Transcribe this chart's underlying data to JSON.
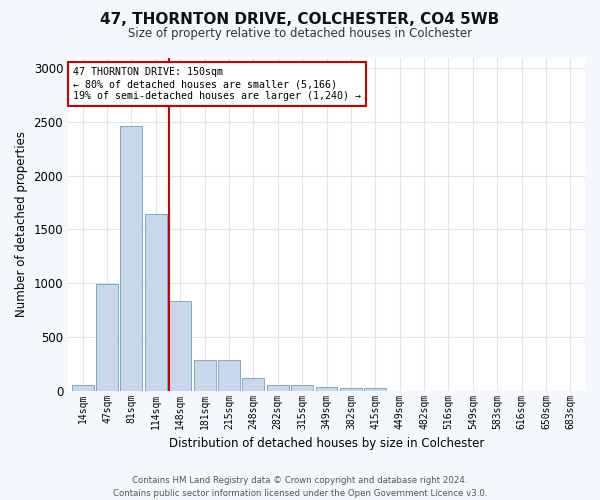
{
  "title": "47, THORNTON DRIVE, COLCHESTER, CO4 5WB",
  "subtitle": "Size of property relative to detached houses in Colchester",
  "xlabel": "Distribution of detached houses by size in Colchester",
  "ylabel": "Number of detached properties",
  "categories": [
    "14sqm",
    "47sqm",
    "81sqm",
    "114sqm",
    "148sqm",
    "181sqm",
    "215sqm",
    "248sqm",
    "282sqm",
    "315sqm",
    "349sqm",
    "382sqm",
    "415sqm",
    "449sqm",
    "482sqm",
    "516sqm",
    "549sqm",
    "583sqm",
    "616sqm",
    "650sqm",
    "683sqm"
  ],
  "values": [
    55,
    995,
    2460,
    1640,
    830,
    285,
    285,
    120,
    55,
    55,
    30,
    20,
    20,
    0,
    0,
    0,
    0,
    0,
    0,
    0,
    0
  ],
  "bar_color": "#c8d8ea",
  "bar_edge_color": "#7aaac8",
  "vline_color": "#cc0000",
  "annotation_text": "47 THORNTON DRIVE: 150sqm\n← 80% of detached houses are smaller (5,166)\n19% of semi-detached houses are larger (1,240) →",
  "annotation_box_color": "#ffffff",
  "annotation_box_edge": "#cc0000",
  "ylim": [
    0,
    3100
  ],
  "yticks": [
    0,
    500,
    1000,
    1500,
    2000,
    2500,
    3000
  ],
  "footer_line1": "Contains HM Land Registry data © Crown copyright and database right 2024.",
  "footer_line2": "Contains public sector information licensed under the Open Government Licence v3.0.",
  "bg_color": "#f4f7fb",
  "plot_bg_color": "#ffffff",
  "grid_color": "#dde4ed"
}
